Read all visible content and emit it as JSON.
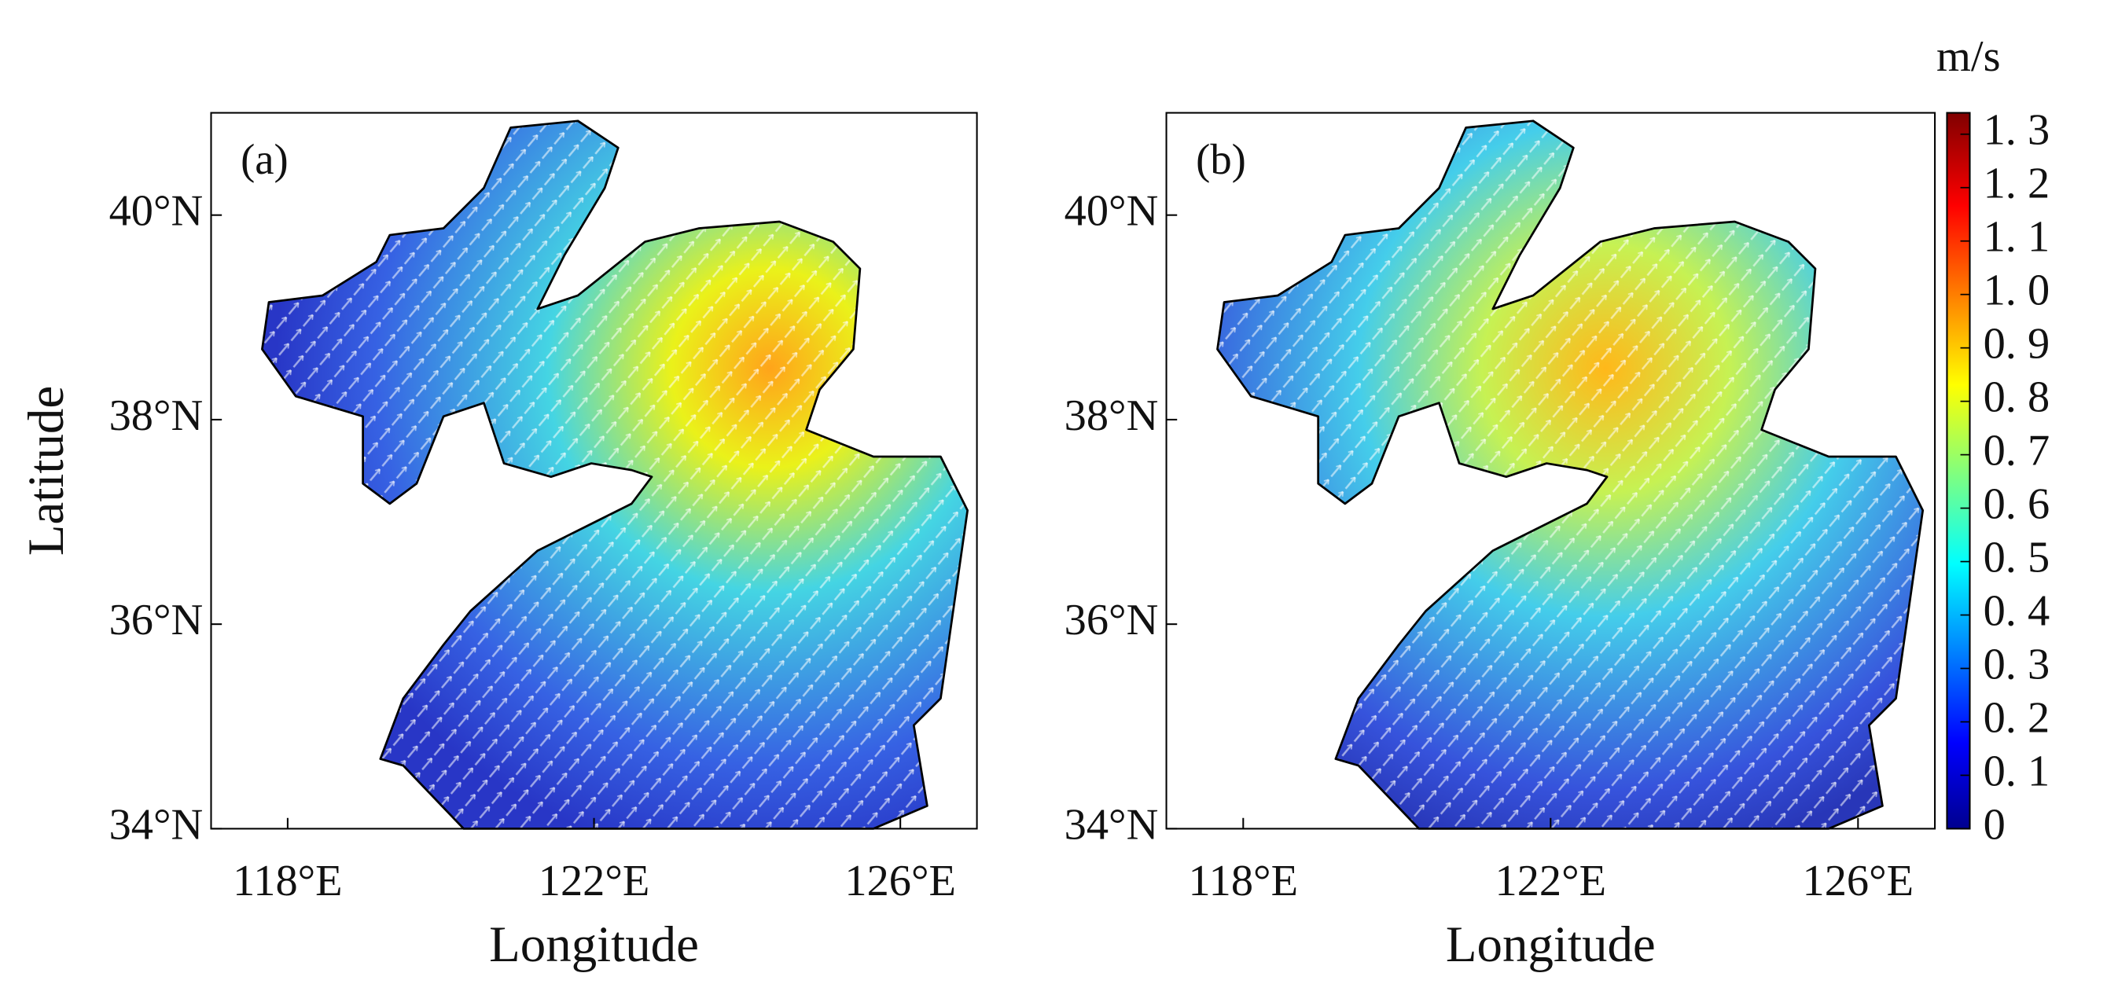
{
  "colorbar": {
    "label": "m/s",
    "ylim": [
      0,
      1.34
    ],
    "yticks": [
      0,
      {
        "value": 0.1,
        "label": "0. 1"
      },
      {
        "value": 0.2,
        "label": "0. 2"
      },
      {
        "value": 0.3,
        "label": "0. 3"
      },
      {
        "value": 0.4,
        "label": "0. 4"
      },
      {
        "value": 0.5,
        "label": "0. 5"
      },
      {
        "value": 0.6,
        "label": "0. 6"
      },
      {
        "value": 0.7,
        "label": "0. 7"
      },
      {
        "value": 0.8,
        "label": "0. 8"
      },
      {
        "value": 0.9,
        "label": "0. 9"
      },
      {
        "value": 1.0,
        "label": "1. 0"
      },
      {
        "value": 1.1,
        "label": "1. 1"
      },
      {
        "value": 1.2,
        "label": "1. 2"
      },
      {
        "value": 1.3,
        "label": "1. 3"
      }
    ]
  },
  "panels": [
    {
      "label": "(a)",
      "xlabel": "Longitude",
      "ylabel": "Latitude",
      "xlim": [
        117,
        127
      ],
      "ylim": [
        34,
        41
      ],
      "xticks": [
        {
          "value": 118,
          "label": "118°E"
        },
        {
          "value": 122,
          "label": "122°E"
        },
        {
          "value": 126,
          "label": "126°E"
        }
      ],
      "yticks": [
        {
          "value": 34,
          "label": "34°N"
        },
        {
          "value": 36,
          "label": "36°N"
        },
        {
          "value": 38,
          "label": "38°N"
        },
        {
          "value": 40,
          "label": "40°N"
        }
      ]
    },
    {
      "label": "(b)",
      "xlabel": "Longitude",
      "xlim": [
        117,
        127
      ],
      "ylim": [
        34,
        41
      ],
      "xticks": [
        {
          "value": 118,
          "label": "118°E"
        },
        {
          "value": 122,
          "label": "122°E"
        },
        {
          "value": 126,
          "label": "126°E"
        }
      ],
      "yticks": [
        {
          "value": 34,
          "label": "34°N"
        },
        {
          "value": 36,
          "label": "36°N"
        },
        {
          "value": 38,
          "label": "38°N"
        },
        {
          "value": 40,
          "label": "40°N"
        }
      ]
    }
  ]
}
